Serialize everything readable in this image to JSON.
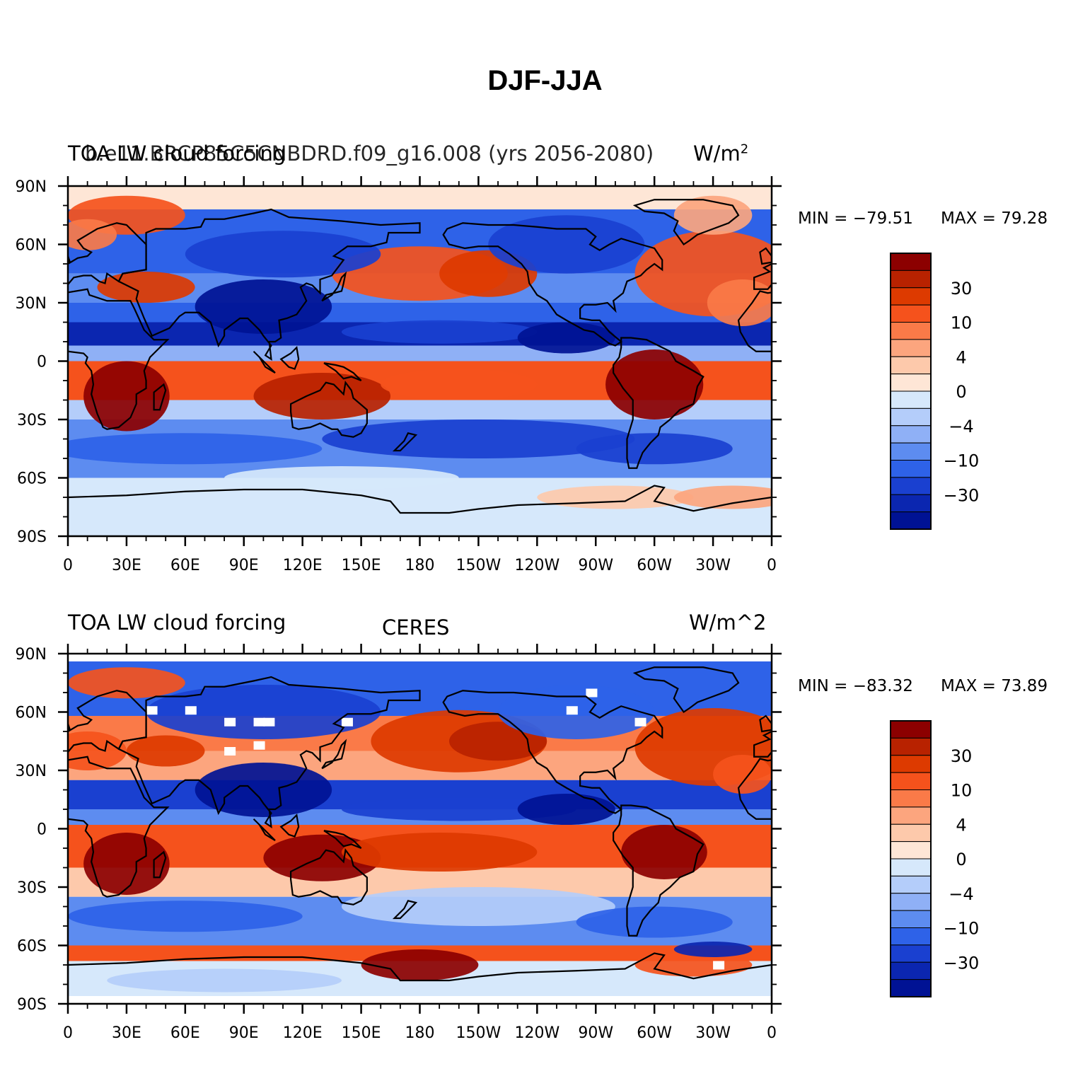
{
  "figure_title": "DJF-JJA",
  "panels": [
    {
      "left_label": "TOA LW cloud forcing",
      "case_label": "b.e11.BRCP85C5CNBDRD.f09_g16.008 (yrs 2056-2080)",
      "units": "W/m",
      "units_sup": "2",
      "min_label": "MIN = −79.51",
      "max_label": "MAX =  79.28",
      "min": -79.51,
      "max": 79.28
    },
    {
      "left_label": "TOA LW cloud forcing",
      "case_label": "CERES",
      "units": "W/m^2",
      "min_label": "MIN = −83.32",
      "max_label": "MAX =  73.89",
      "min": -83.32,
      "max": 73.89
    }
  ],
  "axes": {
    "x_ticks": [
      "0",
      "30E",
      "60E",
      "90E",
      "120E",
      "150E",
      "180",
      "150W",
      "120W",
      "90W",
      "60W",
      "30W",
      "0"
    ],
    "y_ticks": [
      "90N",
      "60N",
      "30N",
      "0",
      "30S",
      "60S",
      "90S"
    ]
  },
  "colorbar": {
    "labels": [
      "30",
      "10",
      "4",
      "0",
      "−4",
      "−10",
      "−30"
    ],
    "colors": [
      "#8c0000",
      "#b82200",
      "#dd3a00",
      "#f5521c",
      "#fa7a48",
      "#fca57e",
      "#fdc9ab",
      "#fee6d6",
      "#d6e8fb",
      "#b4cdfa",
      "#8fb0f6",
      "#5d8cf0",
      "#2e62e8",
      "#1a40d0",
      "#0b26b0",
      "#001294"
    ]
  },
  "chart_data": [
    {
      "type": "heatmap",
      "title": "TOA LW cloud forcing",
      "subtitle": "b.e11.BRCP85C5CNBDRD.f09_g16.008 (yrs 2056-2080)",
      "units": "W/m^2",
      "x_range": [
        0,
        360
      ],
      "y_range": [
        -90,
        90
      ],
      "min": -79.51,
      "max": 79.28,
      "contour_levels": [
        -50,
        -40,
        -30,
        -20,
        -10,
        -6,
        -4,
        -2,
        0,
        2,
        4,
        6,
        10,
        20,
        30,
        40,
        50
      ]
    },
    {
      "type": "heatmap",
      "title": "TOA LW cloud forcing",
      "subtitle": "CERES",
      "units": "W/m^2",
      "x_range": [
        0,
        360
      ],
      "y_range": [
        -90,
        90
      ],
      "min": -83.32,
      "max": 73.89,
      "contour_levels": [
        -50,
        -40,
        -30,
        -20,
        -10,
        -6,
        -4,
        -2,
        0,
        2,
        4,
        6,
        10,
        20,
        30,
        40,
        50
      ]
    }
  ]
}
